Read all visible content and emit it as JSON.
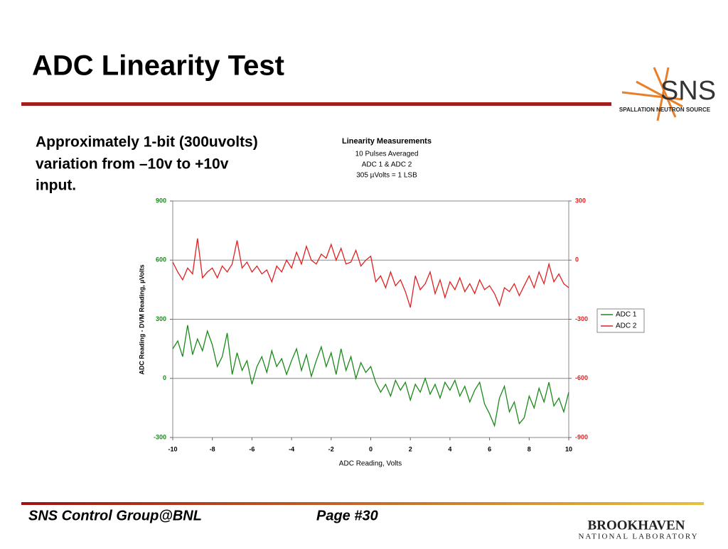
{
  "header": {
    "title": "ADC Linearity Test"
  },
  "body": {
    "lines": [
      "Approximately 1-bit (300uvolts)",
      "variation from –10v to +10v",
      "input."
    ]
  },
  "logos": {
    "sns": "SNS",
    "sns_sub": "SPALLATION NEUTRON SOURCE",
    "bnl": "BROOKHAVEN",
    "bnl_sub": "NATIONAL LABORATORY"
  },
  "footer": {
    "left": "SNS Control Group@BNL",
    "page": "Page #30"
  },
  "chart_data": {
    "type": "line",
    "title": "Linearity Measurements",
    "subtitles": [
      "10 Pulses Averaged",
      "ADC 1 &  ADC 2",
      "305 µVolts = 1 LSB"
    ],
    "xlabel": "ADC Reading, Volts",
    "ylabel": "ADC Reading - DVM Reading, µVolts",
    "xlim": [
      -10,
      10
    ],
    "xticks": [
      -10,
      -8,
      -6,
      -4,
      -2,
      0,
      2,
      4,
      6,
      8,
      10
    ],
    "ylim": [
      -300,
      900
    ],
    "yticks": [
      900,
      600,
      300,
      0,
      -300
    ],
    "y2lim": [
      -900,
      300
    ],
    "y2ticks": [
      300,
      0,
      -300,
      -600,
      -900
    ],
    "grid": true,
    "legend": "right",
    "x": [
      -10,
      -9.75,
      -9.5,
      -9.25,
      -9,
      -8.75,
      -8.5,
      -8.25,
      -8,
      -7.75,
      -7.5,
      -7.25,
      -7,
      -6.75,
      -6.5,
      -6.25,
      -6,
      -5.75,
      -5.5,
      -5.25,
      -5,
      -4.75,
      -4.5,
      -4.25,
      -4,
      -3.75,
      -3.5,
      -3.25,
      -3,
      -2.75,
      -2.5,
      -2.25,
      -2,
      -1.75,
      -1.5,
      -1.25,
      -1,
      -0.75,
      -0.5,
      -0.25,
      0,
      0.25,
      0.5,
      0.75,
      1,
      1.25,
      1.5,
      1.75,
      2,
      2.25,
      2.5,
      2.75,
      3,
      3.25,
      3.5,
      3.75,
      4,
      4.25,
      4.5,
      4.75,
      5,
      5.25,
      5.5,
      5.75,
      6,
      6.25,
      6.5,
      6.75,
      7,
      7.25,
      7.5,
      7.75,
      8,
      8.25,
      8.5,
      8.75,
      9,
      9.25,
      9.5,
      9.75,
      10
    ],
    "series": [
      {
        "name": "ADC 1",
        "color": "#1a8a1a",
        "axis": "y",
        "values": [
          150,
          190,
          110,
          270,
          120,
          200,
          140,
          240,
          170,
          60,
          110,
          230,
          20,
          130,
          40,
          90,
          -30,
          60,
          110,
          30,
          140,
          60,
          100,
          20,
          90,
          150,
          40,
          120,
          10,
          90,
          160,
          60,
          130,
          20,
          150,
          40,
          110,
          0,
          80,
          30,
          60,
          -20,
          -70,
          -30,
          -90,
          -10,
          -60,
          -20,
          -110,
          -30,
          -70,
          0,
          -80,
          -30,
          -100,
          -20,
          -60,
          -10,
          -90,
          -40,
          -120,
          -60,
          -20,
          -130,
          -180,
          -240,
          -100,
          -40,
          -170,
          -120,
          -230,
          -200,
          -90,
          -150,
          -50,
          -120,
          -20,
          -140,
          -100,
          -170,
          -70
        ]
      },
      {
        "name": "ADC 2",
        "color": "#e02020",
        "axis": "y2",
        "values": [
          -10,
          -60,
          -100,
          -40,
          -70,
          110,
          -90,
          -60,
          -40,
          -90,
          -30,
          -60,
          -20,
          100,
          -40,
          -10,
          -60,
          -30,
          -70,
          -50,
          -110,
          -30,
          -60,
          0,
          -40,
          40,
          -20,
          70,
          0,
          -20,
          30,
          10,
          80,
          0,
          60,
          -20,
          -10,
          50,
          -30,
          0,
          20,
          -110,
          -80,
          -140,
          -60,
          -130,
          -100,
          -160,
          -240,
          -80,
          -150,
          -120,
          -60,
          -170,
          -100,
          -190,
          -110,
          -150,
          -90,
          -160,
          -120,
          -170,
          -100,
          -150,
          -130,
          -170,
          -230,
          -140,
          -160,
          -120,
          -180,
          -130,
          -80,
          -140,
          -60,
          -120,
          -20,
          -110,
          -70,
          -120,
          -140
        ]
      }
    ]
  }
}
